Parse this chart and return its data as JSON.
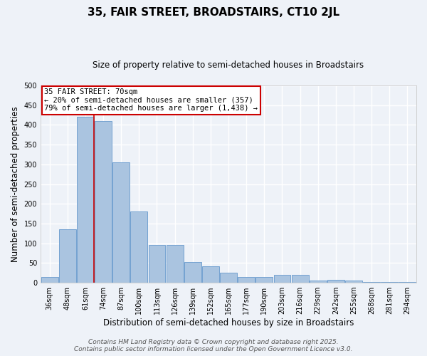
{
  "title": "35, FAIR STREET, BROADSTAIRS, CT10 2JL",
  "subtitle": "Size of property relative to semi-detached houses in Broadstairs",
  "xlabel": "Distribution of semi-detached houses by size in Broadstairs",
  "ylabel": "Number of semi-detached properties",
  "categories": [
    "36sqm",
    "48sqm",
    "61sqm",
    "74sqm",
    "87sqm",
    "100sqm",
    "113sqm",
    "126sqm",
    "139sqm",
    "152sqm",
    "165sqm",
    "177sqm",
    "190sqm",
    "203sqm",
    "216sqm",
    "229sqm",
    "242sqm",
    "255sqm",
    "268sqm",
    "281sqm",
    "294sqm"
  ],
  "values": [
    15,
    135,
    420,
    410,
    305,
    180,
    95,
    95,
    52,
    42,
    26,
    15,
    15,
    20,
    20,
    6,
    7,
    6,
    2,
    2,
    2
  ],
  "bar_color": "#aac4e0",
  "bar_edge_color": "#6699cc",
  "vline_color": "#cc0000",
  "annotation_title": "35 FAIR STREET: 70sqm",
  "annotation_line1": "← 20% of semi-detached houses are smaller (357)",
  "annotation_line2": "79% of semi-detached houses are larger (1,438) →",
  "annotation_box_color": "#cc0000",
  "footer1": "Contains HM Land Registry data © Crown copyright and database right 2025.",
  "footer2": "Contains public sector information licensed under the Open Government Licence v3.0.",
  "ylim": [
    0,
    500
  ],
  "background_color": "#eef2f8",
  "grid_color": "#ffffff",
  "title_fontsize": 11,
  "subtitle_fontsize": 8.5,
  "axis_label_fontsize": 8.5,
  "tick_fontsize": 7,
  "footer_fontsize": 6.5
}
